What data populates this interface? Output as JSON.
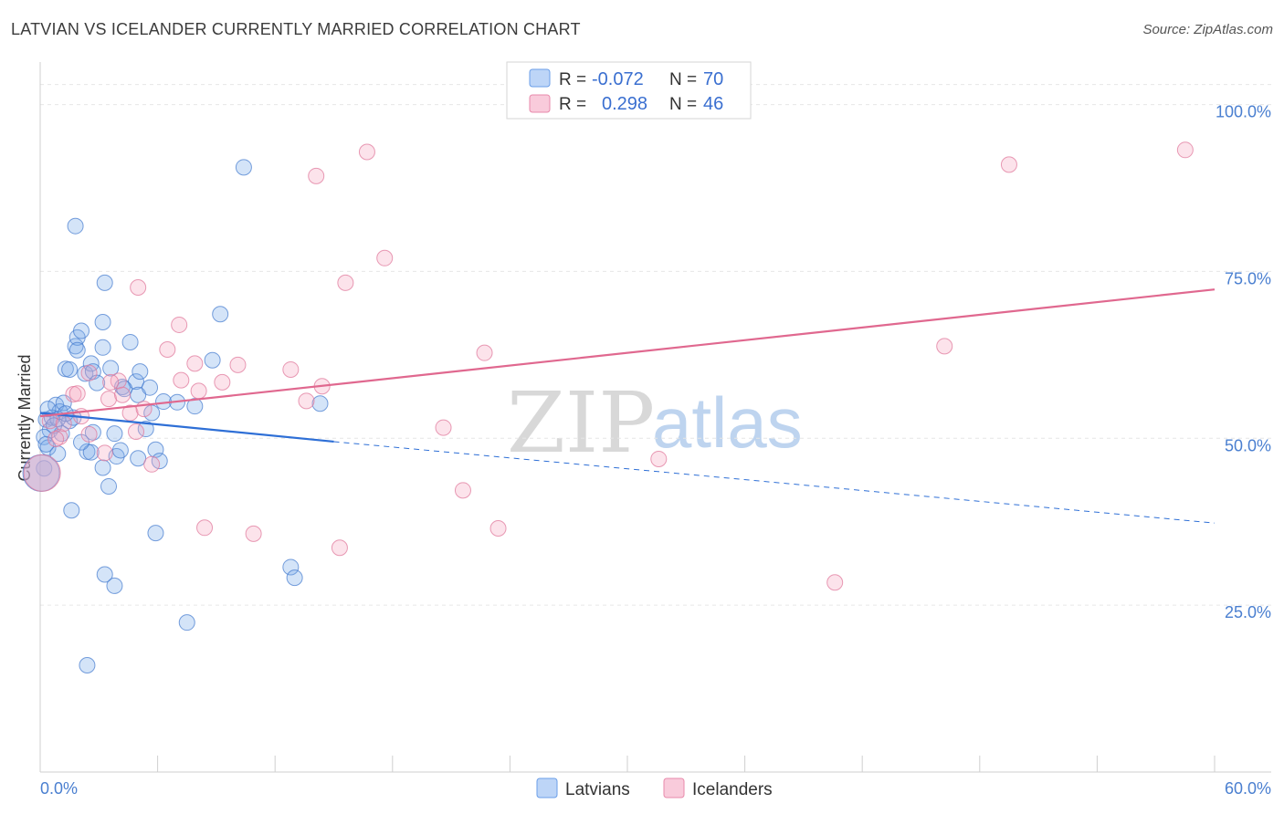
{
  "title": "LATVIAN VS ICELANDER CURRENTLY MARRIED CORRELATION CHART",
  "source": "Source: ZipAtlas.com",
  "watermark": {
    "zip": "ZIP",
    "atlas": "atlas"
  },
  "chart_data": {
    "type": "scatter",
    "xlabel": "",
    "ylabel": "Currently Married",
    "xlim": [
      0,
      60
    ],
    "ylim": [
      0,
      105
    ],
    "x_tick_labels": {
      "left": "0.0%",
      "right": "60.0%"
    },
    "y_ticks": [
      25,
      50,
      75,
      100
    ],
    "y_tick_labels": [
      "25.0%",
      "50.0%",
      "75.0%",
      "100.0%"
    ],
    "grid": true,
    "legend": {
      "position": "top-center",
      "rows": [
        {
          "r_label": "R =",
          "r_value": "-0.072",
          "n_label": "N =",
          "n_value": "70"
        },
        {
          "r_label": "R =",
          "r_value": "0.298",
          "n_label": "N =",
          "n_value": "46"
        }
      ]
    },
    "series": [
      {
        "name": "Latvians",
        "color": "#7aaae8",
        "stroke": "#4a7fd0",
        "trend": {
          "x0": 0,
          "y0": 53.8,
          "x1": 15,
          "y1": 49.5,
          "dash_to_x": 60,
          "dash_to_y": 37.3,
          "color": "#2e6fd6"
        },
        "points": [
          [
            0.3,
            52.8
          ],
          [
            0.5,
            51.2
          ],
          [
            0.8,
            55
          ],
          [
            1,
            54
          ],
          [
            0.2,
            50.2
          ],
          [
            0.4,
            48.6
          ],
          [
            0.6,
            53.1
          ],
          [
            1.2,
            55.3
          ],
          [
            1.5,
            52.6
          ],
          [
            1.7,
            53.1
          ],
          [
            1.3,
            60.4
          ],
          [
            1.5,
            60.3
          ],
          [
            1.8,
            63.8
          ],
          [
            1.9,
            65.1
          ],
          [
            2.1,
            66.1
          ],
          [
            1.9,
            63.2
          ],
          [
            2.3,
            59.7
          ],
          [
            2.6,
            61.2
          ],
          [
            2.7,
            60
          ],
          [
            2.9,
            58.3
          ],
          [
            3.2,
            63.6
          ],
          [
            3.2,
            67.4
          ],
          [
            3.6,
            60.5
          ],
          [
            3.3,
            73.3
          ],
          [
            4.2,
            57.7
          ],
          [
            4.6,
            64.4
          ],
          [
            4.9,
            58.5
          ],
          [
            5.1,
            60
          ],
          [
            5,
            56.5
          ],
          [
            5.6,
            57.6
          ],
          [
            5.7,
            53.8
          ],
          [
            5.4,
            51.4
          ],
          [
            6.3,
            55.5
          ],
          [
            7,
            55.4
          ],
          [
            7.9,
            54.8
          ],
          [
            8.8,
            61.7
          ],
          [
            9.2,
            68.6
          ],
          [
            10.4,
            90.6
          ],
          [
            1.8,
            81.8
          ],
          [
            0.9,
            52.9
          ],
          [
            2.4,
            48
          ],
          [
            2.6,
            47.9
          ],
          [
            3.2,
            45.6
          ],
          [
            3.5,
            42.8
          ],
          [
            3.8,
            50.7
          ],
          [
            3.9,
            47.3
          ],
          [
            4.1,
            48.2
          ],
          [
            5,
            47
          ],
          [
            5.9,
            48.3
          ],
          [
            6.1,
            46.6
          ],
          [
            1.6,
            39.2
          ],
          [
            5.9,
            35.8
          ],
          [
            3.3,
            29.6
          ],
          [
            3.8,
            27.9
          ],
          [
            7.5,
            22.4
          ],
          [
            2.4,
            16
          ],
          [
            12.8,
            30.7
          ],
          [
            13,
            29.1
          ],
          [
            14.3,
            55.2
          ],
          [
            0.9,
            47.7
          ],
          [
            1.1,
            50.7
          ],
          [
            0.7,
            51.9
          ],
          [
            2.1,
            49.4
          ],
          [
            4.3,
            57.4
          ],
          [
            0.2,
            45.5
          ],
          [
            0.4,
            54.4
          ],
          [
            1.3,
            53.7
          ],
          [
            2.7,
            50.9
          ],
          [
            0.3,
            49.1
          ],
          [
            0.05,
            44.8
          ]
        ]
      },
      {
        "name": "Icelanders",
        "color": "#f5a8c0",
        "stroke": "#e07a9c",
        "trend": {
          "x0": 0,
          "y0": 53.3,
          "x1": 60,
          "y1": 72.3,
          "color": "#e0688f"
        },
        "points": [
          [
            0.5,
            52.6
          ],
          [
            1,
            50.2
          ],
          [
            1.2,
            52.2
          ],
          [
            1.7,
            56.6
          ],
          [
            2.1,
            53.3
          ],
          [
            2.5,
            50.6
          ],
          [
            3.3,
            47.8
          ],
          [
            3.5,
            55.9
          ],
          [
            4,
            58.6
          ],
          [
            4.2,
            56.5
          ],
          [
            4.6,
            53.8
          ],
          [
            4.9,
            51
          ],
          [
            5.3,
            54.4
          ],
          [
            5.7,
            46.1
          ],
          [
            6.5,
            63.3
          ],
          [
            7.1,
            67
          ],
          [
            7.2,
            58.7
          ],
          [
            7.9,
            61.2
          ],
          [
            8.1,
            57.1
          ],
          [
            8.4,
            36.6
          ],
          [
            9.3,
            58.4
          ],
          [
            10.1,
            61
          ],
          [
            10.9,
            35.7
          ],
          [
            12.8,
            60.3
          ],
          [
            13.6,
            55.6
          ],
          [
            14.1,
            89.3
          ],
          [
            14.4,
            57.8
          ],
          [
            15.3,
            33.6
          ],
          [
            15.6,
            73.3
          ],
          [
            16.7,
            92.9
          ],
          [
            17.6,
            77
          ],
          [
            20.6,
            51.6
          ],
          [
            21.6,
            42.2
          ],
          [
            22.7,
            62.8
          ],
          [
            23.4,
            36.5
          ],
          [
            31.6,
            46.9
          ],
          [
            40.6,
            28.4
          ],
          [
            46.2,
            63.8
          ],
          [
            49.5,
            91
          ],
          [
            58.5,
            93.2
          ],
          [
            5,
            72.6
          ],
          [
            0.8,
            49.9
          ],
          [
            1.9,
            56.7
          ],
          [
            2.5,
            59.8
          ],
          [
            3.6,
            58.4
          ],
          [
            0.1,
            44.8
          ]
        ]
      }
    ]
  },
  "bottom_legend": [
    "Latvians",
    "Icelanders"
  ]
}
